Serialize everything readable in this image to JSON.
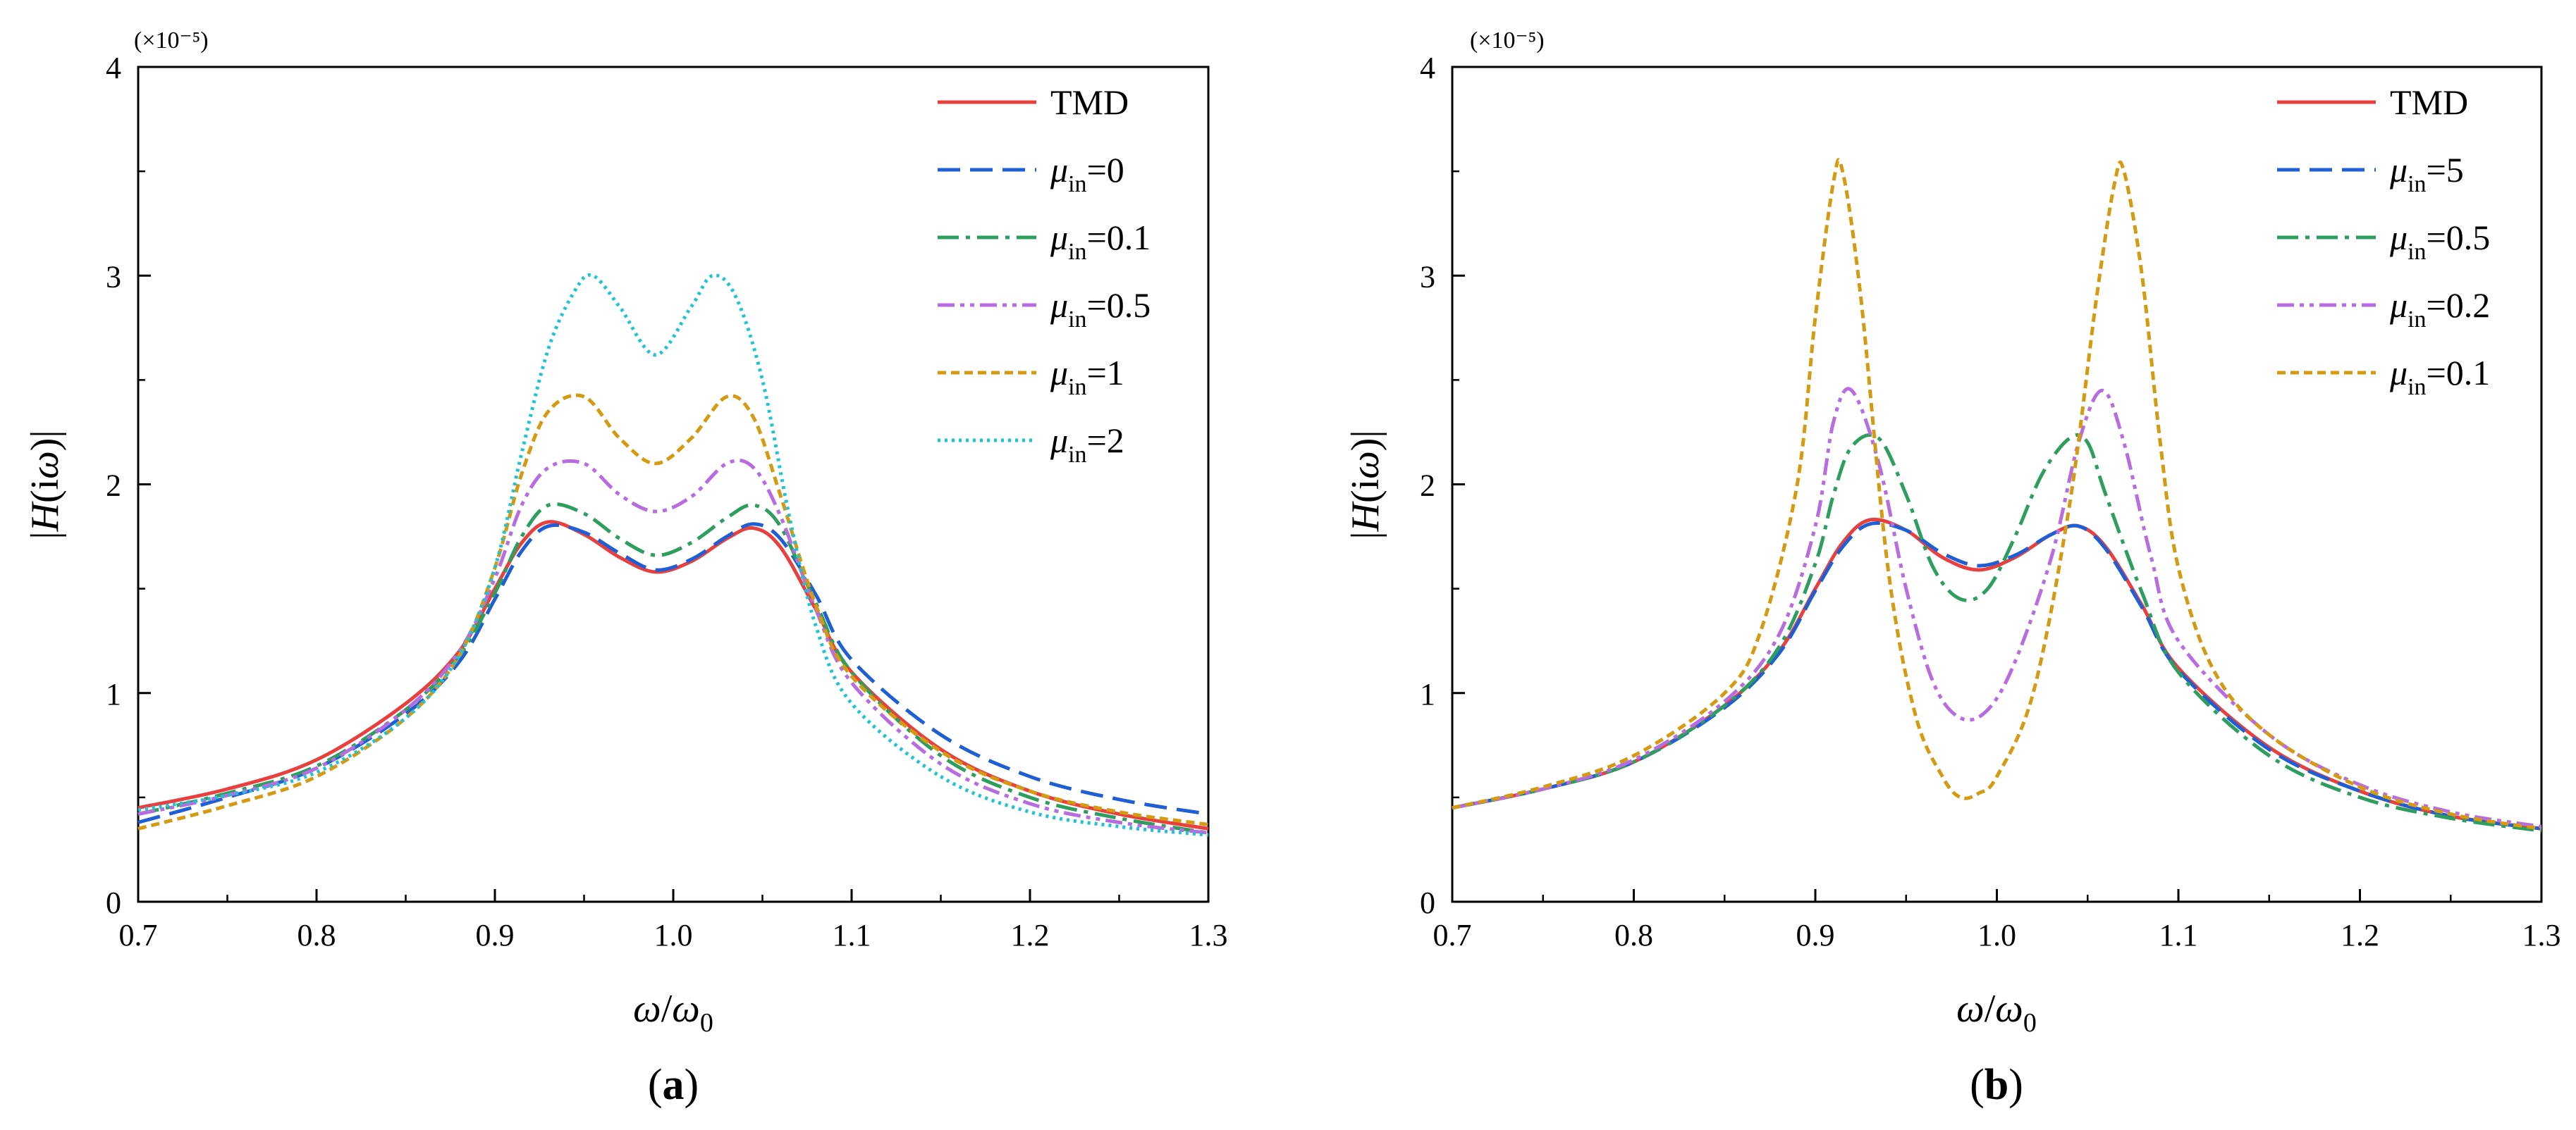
{
  "chart_data": [
    {
      "type": "line",
      "panel_label": "(a)",
      "xlabel": "ω/ω0",
      "ylabel": "|H(iω)|",
      "y_multiplier": "(×10⁻⁵)",
      "xlim": [
        0.7,
        1.3
      ],
      "ylim": [
        0,
        4
      ],
      "xticks": [
        0.7,
        0.8,
        0.9,
        1.0,
        1.1,
        1.2,
        1.3
      ],
      "xtick_labels": [
        "0.7",
        "0.8",
        "0.9",
        "1.0",
        "1.1",
        "1.2",
        "1.3"
      ],
      "yticks": [
        0,
        1,
        2,
        3,
        4
      ],
      "ytick_labels": [
        "0",
        "1",
        "2",
        "3",
        "4"
      ],
      "legend_position": "top-right",
      "series": [
        {
          "name": "TMD",
          "label_main": "TMD",
          "label_sub": "",
          "label_value": "",
          "color": "#e8403f",
          "dash": "solid",
          "x": [
            0.7,
            0.75,
            0.8,
            0.85,
            0.88,
            0.9,
            0.915,
            0.93,
            0.95,
            0.97,
            0.99,
            1.01,
            1.03,
            1.045,
            1.06,
            1.08,
            1.1,
            1.15,
            1.2,
            1.25,
            1.3
          ],
          "y": [
            0.45,
            0.54,
            0.68,
            0.95,
            1.2,
            1.5,
            1.72,
            1.82,
            1.76,
            1.65,
            1.58,
            1.63,
            1.74,
            1.79,
            1.7,
            1.4,
            1.1,
            0.73,
            0.53,
            0.42,
            0.35
          ]
        },
        {
          "name": "μin=0",
          "label_main": "μ",
          "label_sub": "in",
          "label_value": "=0",
          "color": "#1f5fd6",
          "dash": "32,14",
          "x": [
            0.7,
            0.75,
            0.8,
            0.85,
            0.88,
            0.9,
            0.915,
            0.93,
            0.95,
            0.97,
            0.99,
            1.01,
            1.03,
            1.045,
            1.06,
            1.08,
            1.1,
            1.15,
            1.2,
            1.25,
            1.3
          ],
          "y": [
            0.38,
            0.5,
            0.64,
            0.9,
            1.15,
            1.45,
            1.68,
            1.8,
            1.77,
            1.67,
            1.59,
            1.64,
            1.75,
            1.81,
            1.74,
            1.47,
            1.16,
            0.8,
            0.6,
            0.49,
            0.42
          ]
        },
        {
          "name": "μin=0.1",
          "label_main": "μ",
          "label_sub": "in",
          "label_value": "=0.1",
          "color": "#2e9e5e",
          "dash": "30,10,6,10",
          "x": [
            0.7,
            0.75,
            0.8,
            0.85,
            0.88,
            0.9,
            0.915,
            0.93,
            0.95,
            0.97,
            0.99,
            1.01,
            1.03,
            1.045,
            1.06,
            1.08,
            1.1,
            1.15,
            1.2,
            1.25,
            1.3
          ],
          "y": [
            0.42,
            0.52,
            0.65,
            0.92,
            1.18,
            1.48,
            1.75,
            1.9,
            1.86,
            1.74,
            1.66,
            1.72,
            1.84,
            1.9,
            1.8,
            1.43,
            1.1,
            0.7,
            0.5,
            0.4,
            0.33
          ]
        },
        {
          "name": "μin=0.5",
          "label_main": "μ",
          "label_sub": "in",
          "label_value": "=0.5",
          "color": "#b76de0",
          "dash": "24,8,6,8,6,8",
          "x": [
            0.7,
            0.75,
            0.8,
            0.85,
            0.88,
            0.9,
            0.915,
            0.93,
            0.95,
            0.97,
            0.99,
            1.01,
            1.03,
            1.045,
            1.06,
            1.08,
            1.1,
            1.15,
            1.2,
            1.25,
            1.3
          ],
          "y": [
            0.42,
            0.51,
            0.64,
            0.92,
            1.2,
            1.55,
            1.9,
            2.08,
            2.1,
            1.95,
            1.87,
            1.94,
            2.1,
            2.08,
            1.85,
            1.4,
            1.05,
            0.66,
            0.47,
            0.38,
            0.33
          ]
        },
        {
          "name": "μin=1",
          "label_main": "μ",
          "label_sub": "in",
          "label_value": "=1",
          "color": "#d49a12",
          "dash": "12,7",
          "x": [
            0.7,
            0.75,
            0.8,
            0.85,
            0.88,
            0.9,
            0.915,
            0.93,
            0.95,
            0.97,
            0.99,
            1.01,
            1.03,
            1.045,
            1.06,
            1.08,
            1.1,
            1.15,
            1.2,
            1.25,
            1.3
          ],
          "y": [
            0.35,
            0.46,
            0.6,
            0.88,
            1.18,
            1.6,
            2.05,
            2.35,
            2.42,
            2.22,
            2.1,
            2.22,
            2.42,
            2.32,
            1.95,
            1.42,
            1.08,
            0.72,
            0.53,
            0.43,
            0.37
          ]
        },
        {
          "name": "μin=2",
          "label_main": "μ",
          "label_sub": "in",
          "label_value": "=2",
          "color": "#1fc4d4",
          "dash": "4,6",
          "x": [
            0.7,
            0.75,
            0.8,
            0.85,
            0.88,
            0.9,
            0.915,
            0.93,
            0.945,
            0.955,
            0.97,
            0.99,
            1.01,
            1.022,
            1.035,
            1.05,
            1.065,
            1.08,
            1.1,
            1.15,
            1.2,
            1.25,
            1.3
          ],
          "y": [
            0.44,
            0.51,
            0.62,
            0.88,
            1.18,
            1.6,
            2.15,
            2.65,
            2.93,
            3.0,
            2.85,
            2.62,
            2.85,
            3.0,
            2.9,
            2.5,
            1.85,
            1.32,
            0.95,
            0.6,
            0.43,
            0.36,
            0.32
          ]
        }
      ]
    },
    {
      "type": "line",
      "panel_label": "(b)",
      "xlabel": "ω/ω0",
      "ylabel": "|H(iω)|",
      "y_multiplier": "(×10⁻⁵)",
      "xlim": [
        0.7,
        1.3
      ],
      "ylim": [
        0,
        4
      ],
      "xticks": [
        0.7,
        0.8,
        0.9,
        1.0,
        1.1,
        1.2,
        1.3
      ],
      "xtick_labels": [
        "0.7",
        "0.8",
        "0.9",
        "1.0",
        "1.1",
        "1.2",
        "1.3"
      ],
      "yticks": [
        0,
        1,
        2,
        3,
        4
      ],
      "ytick_labels": [
        "0",
        "1",
        "2",
        "3",
        "4"
      ],
      "legend_position": "top-right",
      "series": [
        {
          "name": "TMD",
          "label_main": "TMD",
          "label_sub": "",
          "label_value": "",
          "color": "#e8403f",
          "dash": "solid",
          "x": [
            0.7,
            0.75,
            0.8,
            0.85,
            0.88,
            0.9,
            0.915,
            0.93,
            0.95,
            0.97,
            0.99,
            1.01,
            1.03,
            1.045,
            1.06,
            1.08,
            1.1,
            1.15,
            1.2,
            1.25,
            1.3
          ],
          "y": [
            0.45,
            0.54,
            0.67,
            0.94,
            1.2,
            1.5,
            1.72,
            1.83,
            1.78,
            1.65,
            1.59,
            1.65,
            1.76,
            1.8,
            1.7,
            1.42,
            1.12,
            0.74,
            0.53,
            0.41,
            0.35
          ]
        },
        {
          "name": "μin=5",
          "label_main": "μ",
          "label_sub": "in",
          "label_value": "=5",
          "color": "#1f5fd6",
          "dash": "32,14",
          "x": [
            0.7,
            0.75,
            0.8,
            0.85,
            0.88,
            0.9,
            0.915,
            0.93,
            0.95,
            0.97,
            0.99,
            1.01,
            1.03,
            1.045,
            1.06,
            1.08,
            1.1,
            1.15,
            1.2,
            1.25,
            1.3
          ],
          "y": [
            0.45,
            0.54,
            0.67,
            0.93,
            1.19,
            1.49,
            1.7,
            1.81,
            1.78,
            1.67,
            1.61,
            1.66,
            1.76,
            1.8,
            1.69,
            1.41,
            1.11,
            0.73,
            0.53,
            0.41,
            0.35
          ]
        },
        {
          "name": "μin=0.5",
          "label_main": "μ",
          "label_sub": "in",
          "label_value": "=0.5",
          "color": "#2e9e5e",
          "dash": "30,10,6,10",
          "x": [
            0.7,
            0.75,
            0.8,
            0.85,
            0.88,
            0.9,
            0.91,
            0.92,
            0.935,
            0.95,
            0.965,
            0.98,
            0.995,
            1.01,
            1.025,
            1.04,
            1.05,
            1.06,
            1.08,
            1.1,
            1.15,
            1.2,
            1.25,
            1.3
          ],
          "y": [
            0.45,
            0.54,
            0.67,
            0.94,
            1.22,
            1.62,
            1.95,
            2.18,
            2.22,
            1.95,
            1.6,
            1.45,
            1.5,
            1.75,
            2.05,
            2.22,
            2.2,
            1.95,
            1.48,
            1.1,
            0.7,
            0.5,
            0.4,
            0.34
          ]
        },
        {
          "name": "μin=0.2",
          "label_main": "μ",
          "label_sub": "in",
          "label_value": "=0.2",
          "color": "#b76de0",
          "dash": "24,8,6,8,6,8",
          "x": [
            0.7,
            0.75,
            0.8,
            0.85,
            0.88,
            0.9,
            0.91,
            0.92,
            0.935,
            0.95,
            0.965,
            0.98,
            0.995,
            1.01,
            1.03,
            1.045,
            1.058,
            1.07,
            1.085,
            1.1,
            1.15,
            1.2,
            1.25,
            1.3
          ],
          "y": [
            0.45,
            0.54,
            0.68,
            0.96,
            1.28,
            1.8,
            2.3,
            2.45,
            2.1,
            1.5,
            1.05,
            0.88,
            0.92,
            1.15,
            1.65,
            2.2,
            2.45,
            2.2,
            1.65,
            1.25,
            0.8,
            0.56,
            0.43,
            0.36
          ]
        },
        {
          "name": "μin=0.1",
          "label_main": "μ",
          "label_sub": "in",
          "label_value": "=0.1",
          "color": "#d49a12",
          "dash": "12,7",
          "x": [
            0.7,
            0.75,
            0.8,
            0.85,
            0.87,
            0.89,
            0.9,
            0.91,
            0.915,
            0.925,
            0.94,
            0.955,
            0.97,
            0.98,
            0.99,
            1.0,
            1.02,
            1.04,
            1.055,
            1.065,
            1.07,
            1.08,
            1.09,
            1.1,
            1.12,
            1.15,
            1.2,
            1.25,
            1.3
          ],
          "y": [
            0.45,
            0.55,
            0.7,
            1.0,
            1.3,
            2.0,
            2.8,
            3.45,
            3.5,
            2.9,
            1.6,
            0.9,
            0.6,
            0.5,
            0.52,
            0.6,
            1.0,
            1.9,
            2.9,
            3.45,
            3.5,
            3.0,
            2.2,
            1.6,
            1.1,
            0.8,
            0.55,
            0.42,
            0.35
          ]
        }
      ]
    }
  ]
}
